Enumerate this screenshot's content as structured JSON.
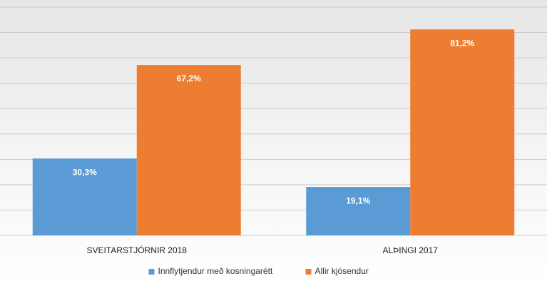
{
  "chart_data": {
    "type": "bar",
    "categories": [
      "SVEITARSTJÓRNIR 2018",
      "ALÞINGI 2017"
    ],
    "series": [
      {
        "name": "Innflytjendur með kosningarétt",
        "color": "#5b9bd5",
        "values": [
          30.3,
          19.1
        ],
        "value_labels": [
          "30,3%",
          "19,1%"
        ]
      },
      {
        "name": "Allir kjósendur",
        "color": "#ed7d31",
        "values": [
          67.2,
          81.2
        ],
        "value_labels": [
          "67,2%",
          "81,2%"
        ]
      }
    ],
    "ylim": [
      0,
      90
    ],
    "yticks": [
      0,
      10,
      20,
      30,
      40,
      50,
      60,
      70,
      80,
      90
    ],
    "grid": true,
    "legend": "bottom"
  }
}
